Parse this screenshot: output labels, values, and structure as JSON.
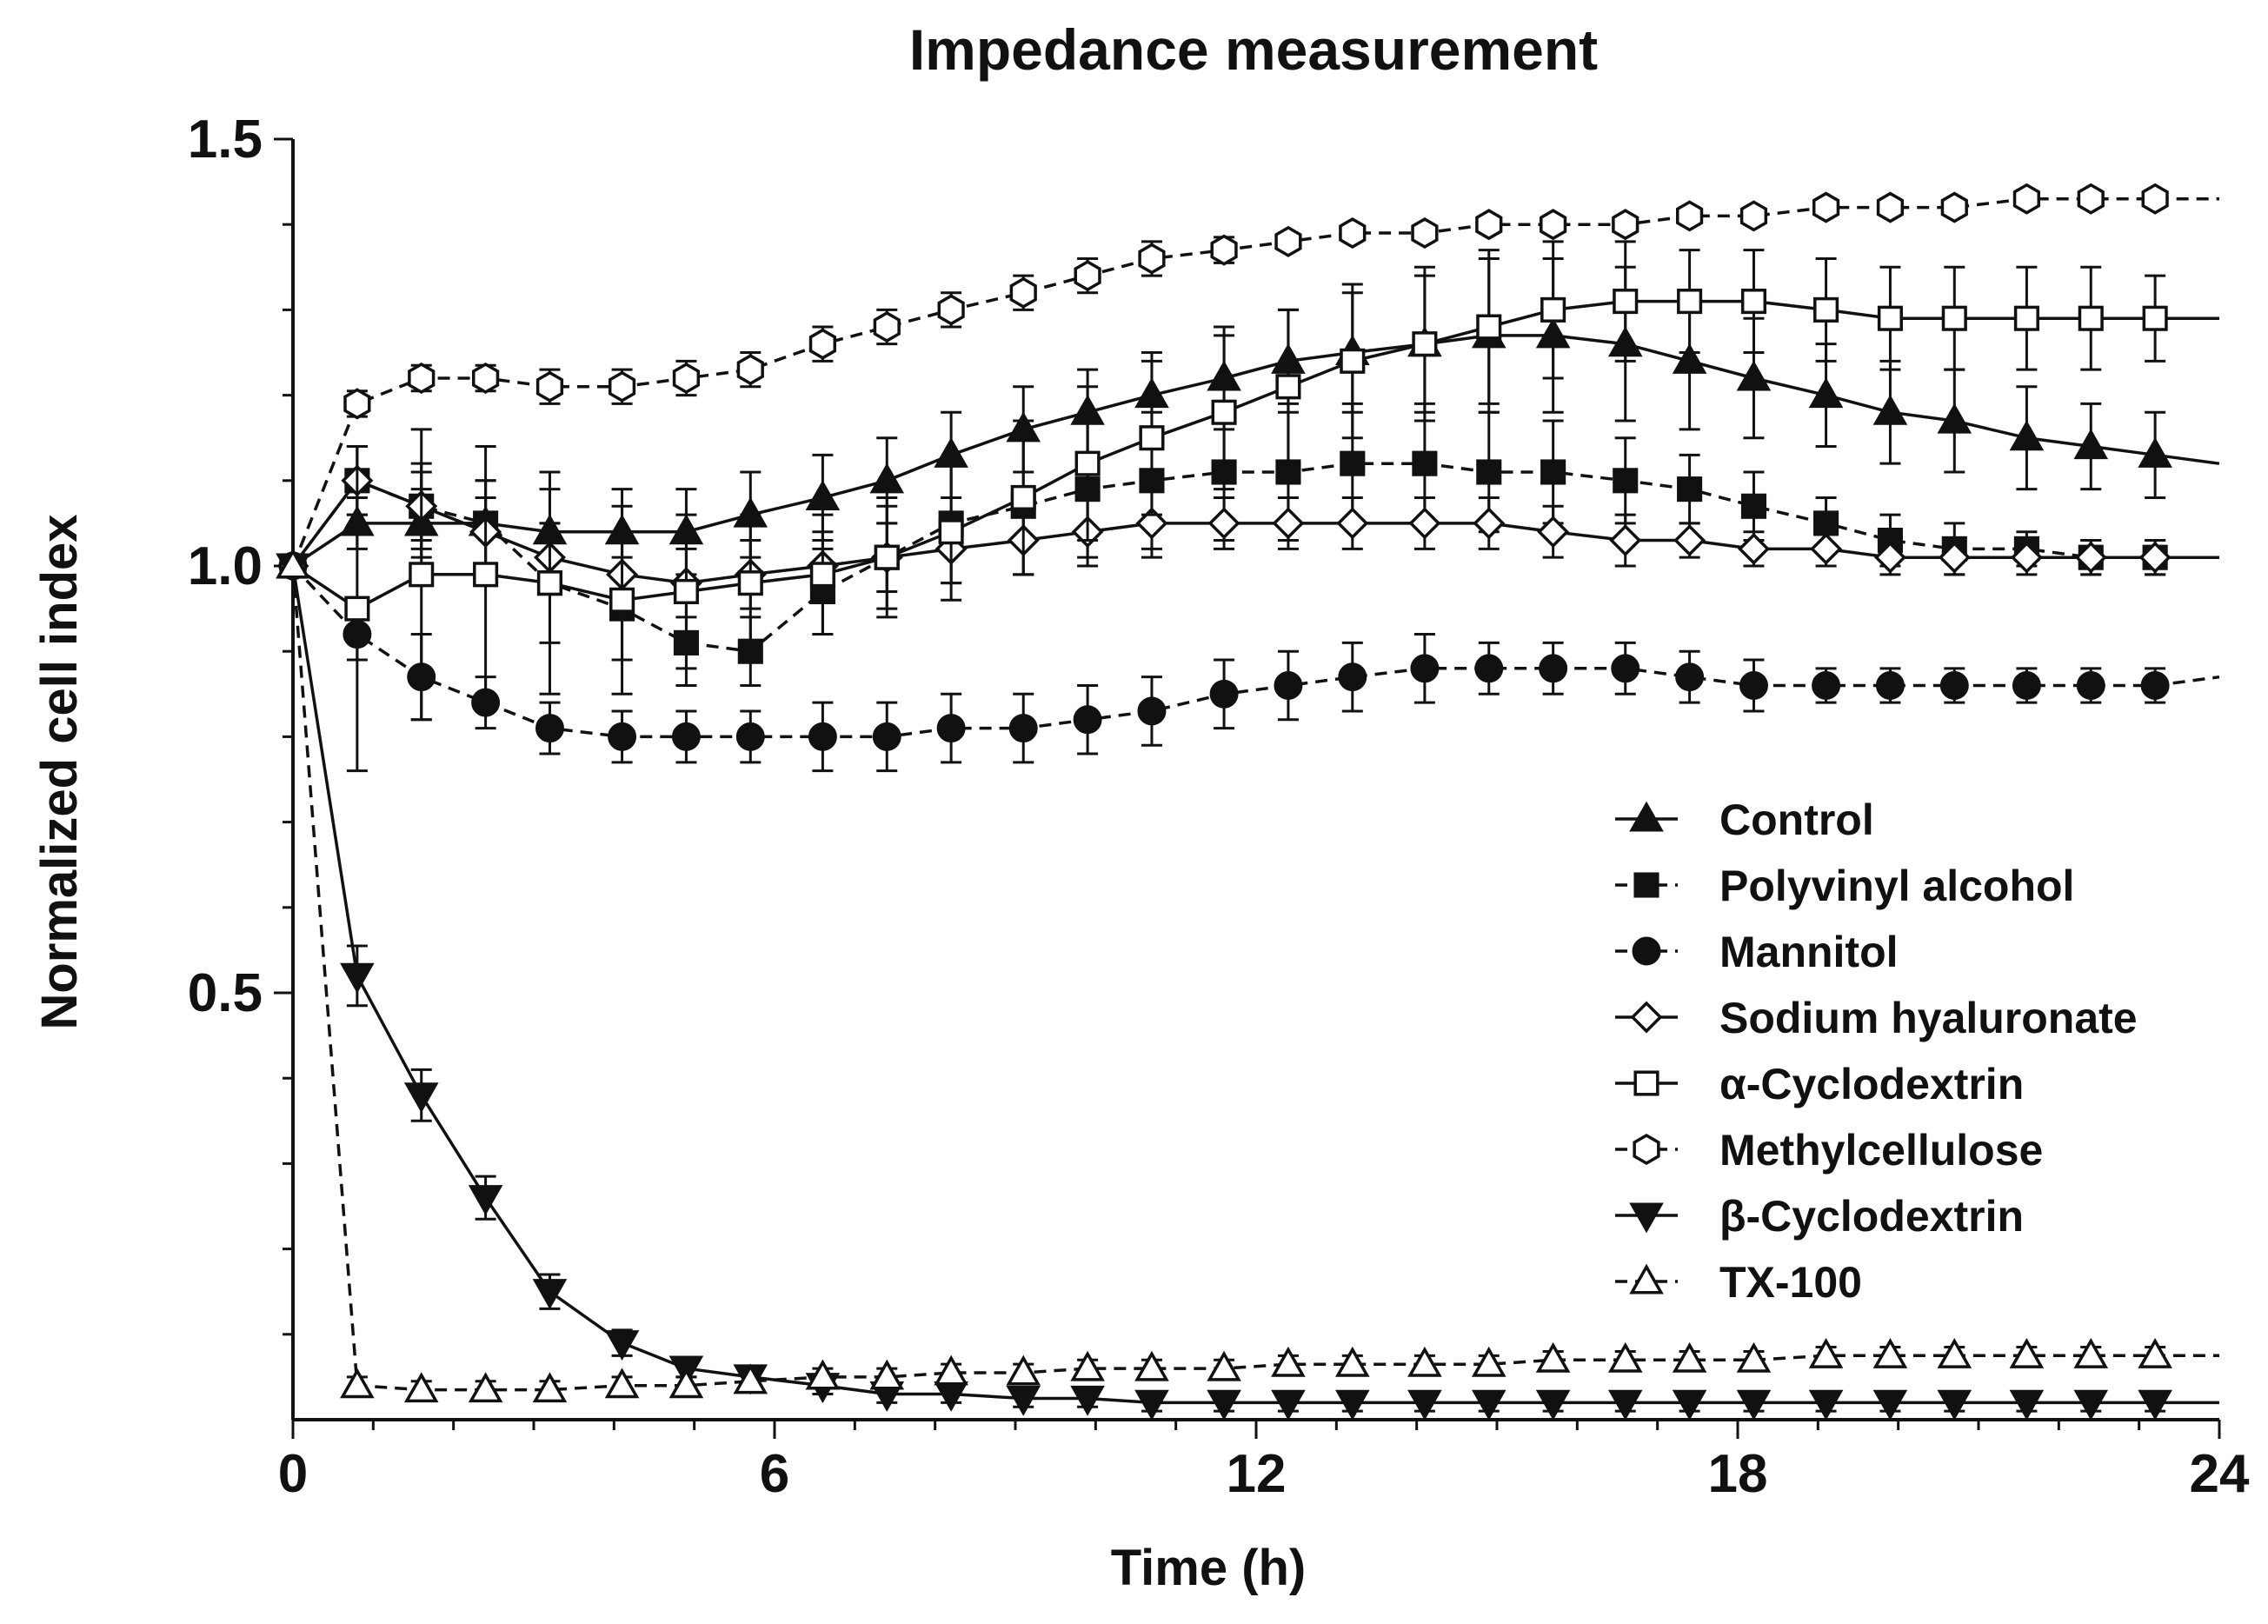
{
  "chart_data": {
    "type": "line",
    "title": "Impedance measurement",
    "xlabel": "Time (h)",
    "ylabel": "Normalized cell index",
    "xlim": [
      0,
      24
    ],
    "ylim": [
      0.0,
      1.5
    ],
    "xticks": [
      0,
      6,
      12,
      18,
      24
    ],
    "xtick_labels": [
      "0",
      "6",
      "12",
      "18",
      "24"
    ],
    "yticks": [
      0.5,
      1.0,
      1.5
    ],
    "ytick_labels": [
      "0.5",
      "1.0",
      "1.5"
    ],
    "grid": false,
    "legend_position": "lower-right",
    "series": [
      {
        "name": "Control",
        "marker": "triangle-up",
        "fill": "filled",
        "dash": "solid",
        "x": [
          0,
          0.8,
          1.6,
          2.4,
          3.2,
          4.1,
          4.9,
          5.7,
          6.6,
          7.4,
          8.2,
          9.1,
          9.9,
          10.7,
          11.6,
          12.4,
          13.2,
          14.1,
          14.9,
          15.7,
          16.6,
          17.4,
          18.2,
          19.1,
          19.9,
          20.7,
          21.6,
          22.4,
          23.2,
          24
        ],
        "values": [
          1.0,
          1.05,
          1.05,
          1.05,
          1.04,
          1.04,
          1.04,
          1.06,
          1.08,
          1.1,
          1.13,
          1.16,
          1.18,
          1.2,
          1.22,
          1.24,
          1.25,
          1.26,
          1.27,
          1.27,
          1.26,
          1.24,
          1.22,
          1.2,
          1.18,
          1.17,
          1.15,
          1.14,
          1.13,
          1.12
        ],
        "errors": [
          0,
          0.03,
          0.04,
          0.05,
          0.05,
          0.05,
          0.05,
          0.05,
          0.05,
          0.05,
          0.05,
          0.05,
          0.05,
          0.05,
          0.06,
          0.06,
          0.07,
          0.08,
          0.09,
          0.09,
          0.09,
          0.08,
          0.07,
          0.06,
          0.06,
          0.06,
          0.06,
          0.05,
          0.05,
          0
        ]
      },
      {
        "name": "Polyvinyl alcohol",
        "marker": "square",
        "fill": "filled",
        "dash": "dashed",
        "x": [
          0,
          0.8,
          1.6,
          2.4,
          3.2,
          4.1,
          4.9,
          5.7,
          6.6,
          7.4,
          8.2,
          9.1,
          9.9,
          10.7,
          11.6,
          12.4,
          13.2,
          14.1,
          14.9,
          15.7,
          16.6,
          17.4,
          18.2,
          19.1,
          19.9,
          20.7,
          21.6,
          22.4,
          23.2,
          24
        ],
        "values": [
          1.0,
          1.1,
          1.07,
          1.05,
          0.98,
          0.95,
          0.91,
          0.9,
          0.97,
          1.01,
          1.05,
          1.07,
          1.09,
          1.1,
          1.11,
          1.11,
          1.12,
          1.12,
          1.11,
          1.11,
          1.1,
          1.09,
          1.07,
          1.05,
          1.03,
          1.02,
          1.02,
          1.01,
          1.01,
          1.01
        ],
        "errors": [
          0,
          0.04,
          0.05,
          0.05,
          0.07,
          0.06,
          0.05,
          0.04,
          0.05,
          0.06,
          0.07,
          0.08,
          0.08,
          0.08,
          0.08,
          0.08,
          0.07,
          0.07,
          0.07,
          0.06,
          0.05,
          0.04,
          0.04,
          0.03,
          0.03,
          0.03,
          0.02,
          0.02,
          0.02,
          0
        ]
      },
      {
        "name": "Mannitol",
        "marker": "circle",
        "fill": "filled",
        "dash": "dashed",
        "x": [
          0,
          0.8,
          1.6,
          2.4,
          3.2,
          4.1,
          4.9,
          5.7,
          6.6,
          7.4,
          8.2,
          9.1,
          9.9,
          10.7,
          11.6,
          12.4,
          13.2,
          14.1,
          14.9,
          15.7,
          16.6,
          17.4,
          18.2,
          19.1,
          19.9,
          20.7,
          21.6,
          22.4,
          23.2,
          24
        ],
        "values": [
          1.0,
          0.92,
          0.87,
          0.84,
          0.81,
          0.8,
          0.8,
          0.8,
          0.8,
          0.8,
          0.81,
          0.81,
          0.82,
          0.83,
          0.85,
          0.86,
          0.87,
          0.88,
          0.88,
          0.88,
          0.88,
          0.87,
          0.86,
          0.86,
          0.86,
          0.86,
          0.86,
          0.86,
          0.86,
          0.87
        ],
        "errors": [
          0,
          0.03,
          0.05,
          0.03,
          0.03,
          0.03,
          0.03,
          0.03,
          0.04,
          0.04,
          0.04,
          0.04,
          0.04,
          0.04,
          0.04,
          0.04,
          0.04,
          0.04,
          0.03,
          0.03,
          0.03,
          0.03,
          0.03,
          0.02,
          0.02,
          0.02,
          0.02,
          0.02,
          0.02,
          0
        ]
      },
      {
        "name": "Sodium hyaluronate",
        "marker": "diamond",
        "fill": "open",
        "dash": "solid",
        "x": [
          0,
          0.8,
          1.6,
          2.4,
          3.2,
          4.1,
          4.9,
          5.7,
          6.6,
          7.4,
          8.2,
          9.1,
          9.9,
          10.7,
          11.6,
          12.4,
          13.2,
          14.1,
          14.9,
          15.7,
          16.6,
          17.4,
          18.2,
          19.1,
          19.9,
          20.7,
          21.6,
          22.4,
          23.2,
          24
        ],
        "values": [
          1.0,
          1.1,
          1.07,
          1.04,
          1.01,
          0.99,
          0.98,
          0.99,
          1.0,
          1.01,
          1.02,
          1.03,
          1.04,
          1.05,
          1.05,
          1.05,
          1.05,
          1.05,
          1.05,
          1.04,
          1.03,
          1.03,
          1.02,
          1.02,
          1.01,
          1.01,
          1.01,
          1.01,
          1.01,
          1.01
        ],
        "errors": [
          0,
          0.04,
          0.04,
          0.04,
          0.04,
          0.04,
          0.04,
          0.04,
          0.04,
          0.04,
          0.04,
          0.04,
          0.04,
          0.04,
          0.03,
          0.03,
          0.03,
          0.03,
          0.03,
          0.03,
          0.03,
          0.02,
          0.02,
          0.02,
          0.02,
          0.02,
          0.02,
          0.02,
          0.02,
          0
        ]
      },
      {
        "name": "α-Cyclodextrin",
        "marker": "square",
        "fill": "open",
        "dash": "solid",
        "x": [
          0,
          0.8,
          1.6,
          2.4,
          3.2,
          4.1,
          4.9,
          5.7,
          6.6,
          7.4,
          8.2,
          9.1,
          9.9,
          10.7,
          11.6,
          12.4,
          13.2,
          14.1,
          14.9,
          15.7,
          16.6,
          17.4,
          18.2,
          19.1,
          19.9,
          20.7,
          21.6,
          22.4,
          23.2,
          24
        ],
        "values": [
          1.0,
          0.95,
          0.99,
          0.99,
          0.98,
          0.96,
          0.97,
          0.98,
          0.99,
          1.01,
          1.04,
          1.08,
          1.12,
          1.15,
          1.18,
          1.21,
          1.24,
          1.26,
          1.28,
          1.3,
          1.31,
          1.31,
          1.31,
          1.3,
          1.29,
          1.29,
          1.29,
          1.29,
          1.29,
          1.29
        ],
        "errors": [
          0,
          0.19,
          0.17,
          0.15,
          0.13,
          0.11,
          0.09,
          0.08,
          0.07,
          0.07,
          0.08,
          0.09,
          0.09,
          0.09,
          0.09,
          0.09,
          0.09,
          0.09,
          0.09,
          0.08,
          0.07,
          0.06,
          0.06,
          0.06,
          0.06,
          0.06,
          0.06,
          0.06,
          0.05,
          0
        ]
      },
      {
        "name": "Methylcellulose",
        "marker": "hexagon",
        "fill": "open",
        "dash": "dashed",
        "x": [
          0,
          0.8,
          1.6,
          2.4,
          3.2,
          4.1,
          4.9,
          5.7,
          6.6,
          7.4,
          8.2,
          9.1,
          9.9,
          10.7,
          11.6,
          12.4,
          13.2,
          14.1,
          14.9,
          15.7,
          16.6,
          17.4,
          18.2,
          19.1,
          19.9,
          20.7,
          21.6,
          22.4,
          23.2,
          24
        ],
        "values": [
          1.0,
          1.19,
          1.22,
          1.22,
          1.21,
          1.21,
          1.22,
          1.23,
          1.26,
          1.28,
          1.3,
          1.32,
          1.34,
          1.36,
          1.37,
          1.38,
          1.39,
          1.39,
          1.4,
          1.4,
          1.4,
          1.41,
          1.41,
          1.42,
          1.42,
          1.42,
          1.43,
          1.43,
          1.43,
          1.43
        ],
        "errors": [
          0,
          0.015,
          0.015,
          0.015,
          0.02,
          0.02,
          0.02,
          0.02,
          0.02,
          0.02,
          0.02,
          0.02,
          0.02,
          0.02,
          0.015,
          0.01,
          0.01,
          0.01,
          0.01,
          0.01,
          0.01,
          0.01,
          0.01,
          0.01,
          0.01,
          0.01,
          0.01,
          0.01,
          0.01,
          0
        ]
      },
      {
        "name": "β-Cyclodextrin",
        "marker": "triangle-down",
        "fill": "filled",
        "dash": "solid",
        "x": [
          0,
          0.8,
          1.6,
          2.4,
          3.2,
          4.1,
          4.9,
          5.7,
          6.6,
          7.4,
          8.2,
          9.1,
          9.9,
          10.7,
          11.6,
          12.4,
          13.2,
          14.1,
          14.9,
          15.7,
          16.6,
          17.4,
          18.2,
          19.1,
          19.9,
          20.7,
          21.6,
          22.4,
          23.2,
          24
        ],
        "values": [
          1.0,
          0.52,
          0.38,
          0.26,
          0.15,
          0.09,
          0.06,
          0.05,
          0.04,
          0.03,
          0.03,
          0.025,
          0.025,
          0.02,
          0.02,
          0.02,
          0.02,
          0.02,
          0.02,
          0.02,
          0.02,
          0.02,
          0.02,
          0.02,
          0.02,
          0.02,
          0.02,
          0.02,
          0.02,
          0.02
        ],
        "errors": [
          0,
          0.035,
          0.03,
          0.025,
          0.02,
          0.015,
          0.01,
          0.01,
          0.01,
          0.01,
          0.01,
          0.01,
          0.01,
          0.01,
          0.01,
          0.01,
          0.01,
          0.01,
          0.01,
          0.01,
          0.01,
          0.01,
          0.01,
          0.01,
          0.01,
          0.01,
          0.01,
          0.01,
          0.01,
          0
        ]
      },
      {
        "name": "TX-100",
        "marker": "triangle-up",
        "fill": "open",
        "dash": "dashed",
        "x": [
          0,
          0.8,
          1.6,
          2.4,
          3.2,
          4.1,
          4.9,
          5.7,
          6.6,
          7.4,
          8.2,
          9.1,
          9.9,
          10.7,
          11.6,
          12.4,
          13.2,
          14.1,
          14.9,
          15.7,
          16.6,
          17.4,
          18.2,
          19.1,
          19.9,
          20.7,
          21.6,
          22.4,
          23.2,
          24
        ],
        "values": [
          1.0,
          0.04,
          0.035,
          0.035,
          0.035,
          0.04,
          0.04,
          0.045,
          0.05,
          0.05,
          0.055,
          0.055,
          0.06,
          0.06,
          0.06,
          0.065,
          0.065,
          0.065,
          0.065,
          0.07,
          0.07,
          0.07,
          0.07,
          0.075,
          0.075,
          0.075,
          0.075,
          0.075,
          0.075,
          0.075
        ],
        "errors": [
          0,
          0.01,
          0.01,
          0.01,
          0.01,
          0.01,
          0.01,
          0.01,
          0.01,
          0.01,
          0.01,
          0.01,
          0.01,
          0.01,
          0.01,
          0.01,
          0.01,
          0.01,
          0.01,
          0.01,
          0.01,
          0.01,
          0.01,
          0.01,
          0.01,
          0.01,
          0.01,
          0.01,
          0.01,
          0
        ]
      }
    ]
  }
}
